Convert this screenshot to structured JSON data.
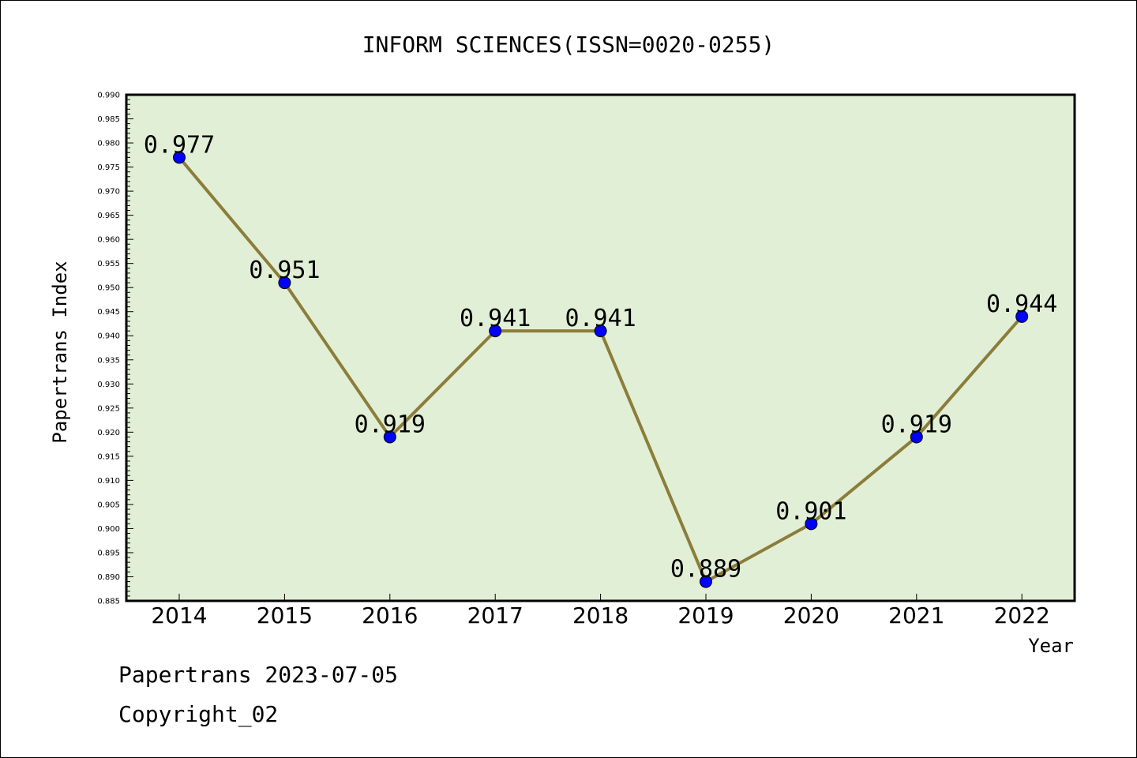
{
  "chart_data": {
    "type": "line",
    "title": "INFORM SCIENCES(ISSN=0020-0255)",
    "xlabel": "Year",
    "ylabel": "Papertrans Index",
    "categories": [
      "2014",
      "2015",
      "2016",
      "2017",
      "2018",
      "2019",
      "2020",
      "2021",
      "2022"
    ],
    "values": [
      0.977,
      0.951,
      0.919,
      0.941,
      0.941,
      0.889,
      0.901,
      0.919,
      0.944
    ],
    "data_labels": [
      "0.977",
      "0.951",
      "0.919",
      "0.941",
      "0.941",
      "0.889",
      "0.901",
      "0.919",
      "0.944"
    ],
    "ylim": [
      0.885,
      0.99
    ],
    "yticks": [
      "0.885",
      "0.890",
      "0.895",
      "0.900",
      "0.905",
      "0.910",
      "0.915",
      "0.920",
      "0.925",
      "0.930",
      "0.935",
      "0.940",
      "0.945",
      "0.950",
      "0.955",
      "0.960",
      "0.965",
      "0.970",
      "0.975",
      "0.980",
      "0.985",
      "0.990"
    ],
    "grid": false,
    "legend": "none",
    "colors": {
      "plot_background": "#e1efd6",
      "line": "#8b7d3a",
      "marker": "#0000ff"
    }
  },
  "footer": {
    "line1": "Papertrans 2023-07-05",
    "line2": "Copyright_02"
  }
}
